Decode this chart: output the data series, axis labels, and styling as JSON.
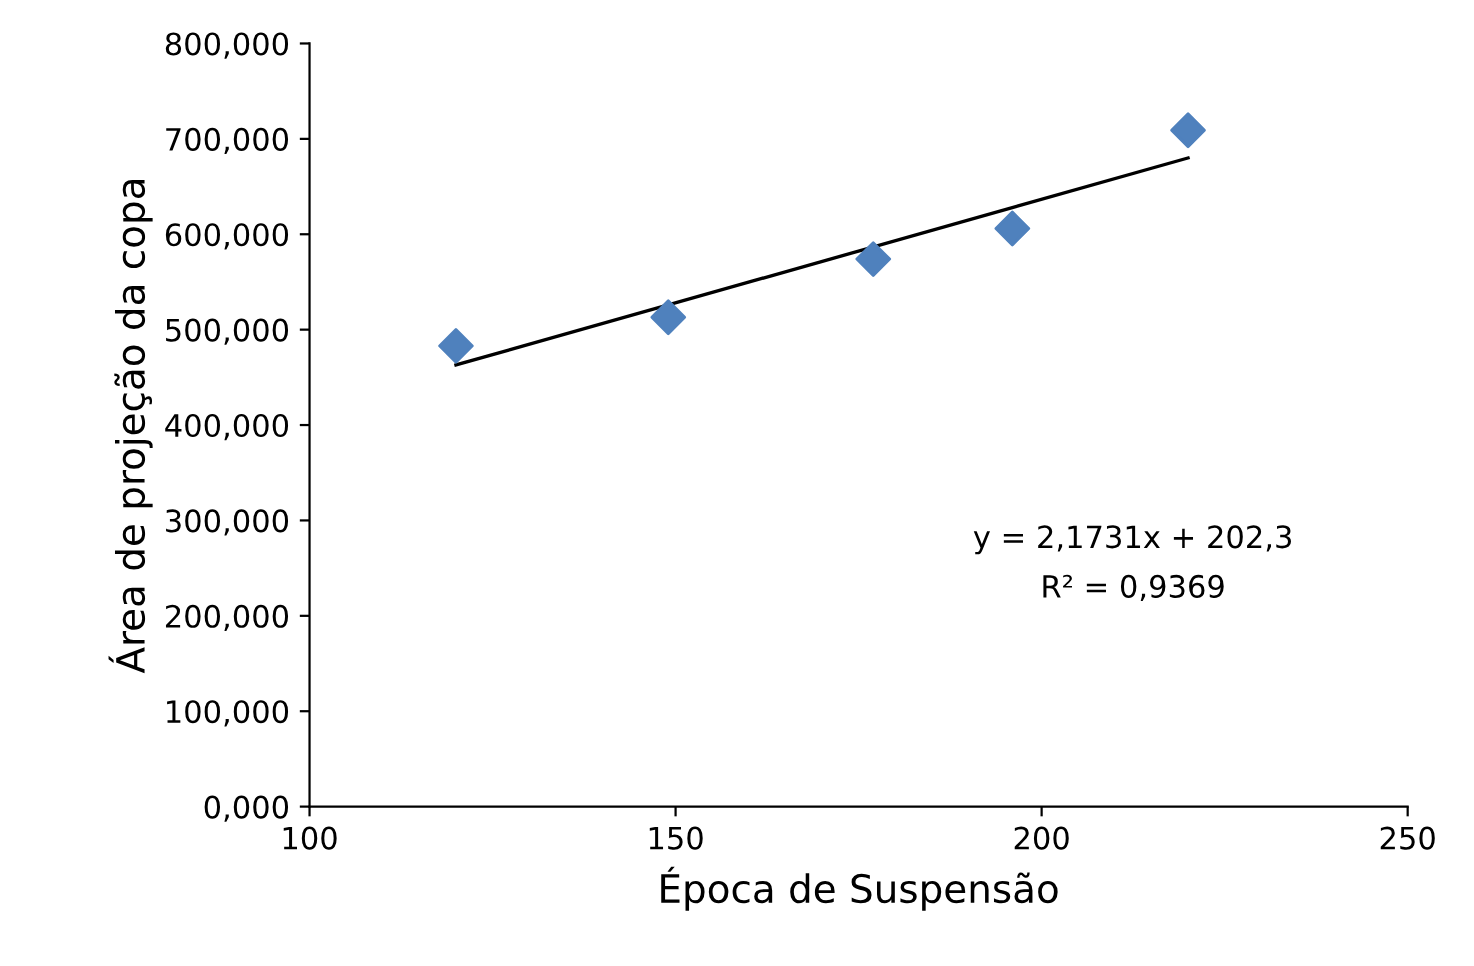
{
  "chart_data": {
    "type": "scatter",
    "xlabel": "Época de Suspensão",
    "ylabel": "Área de projeção da copa",
    "series": [
      {
        "color": "#4f81bd",
        "marker": "diamond",
        "x": [
          120,
          149,
          177,
          196,
          220
        ],
        "values": [
          483,
          513,
          574,
          606,
          709
        ]
      },
      {
        "type": "line",
        "color": "#000000",
        "marker": "none",
        "line_style": "solid",
        "x": [
          120,
          220
        ],
        "values": [
          463,
          680
        ]
      }
    ],
    "xlim": [
      100,
      250
    ],
    "xticks": [
      100,
      150,
      200,
      250
    ],
    "ylim": [
      0,
      800
    ],
    "yticks": [
      {
        "value": 0,
        "label": "0,000"
      },
      {
        "value": 100,
        "label": "100,000"
      },
      {
        "value": 200,
        "label": "200,000"
      },
      {
        "value": 300,
        "label": "300,000"
      },
      {
        "value": 400,
        "label": "400,000"
      },
      {
        "value": 500,
        "label": "500,000"
      },
      {
        "value": 600,
        "label": "600,000"
      },
      {
        "value": 700,
        "label": "700,000"
      },
      {
        "value": 800,
        "label": "800,000"
      }
    ],
    "annotations": [
      "y = 2,1731x + 202,3",
      "R² = 0,9369"
    ],
    "grid": false,
    "legend": false
  }
}
